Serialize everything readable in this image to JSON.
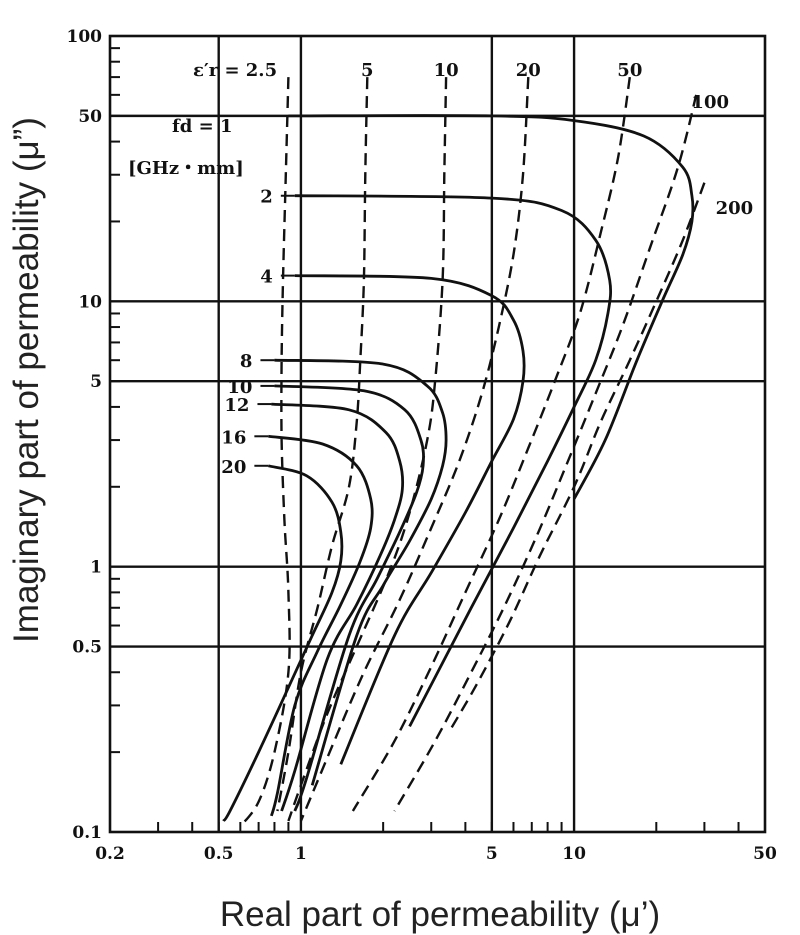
{
  "chart_data": {
    "type": "line",
    "title": "",
    "xlabel": "Real part of permeability (μ’)",
    "ylabel": "Imaginary part of permeability (μ”)",
    "xscale": "log",
    "yscale": "log",
    "xlim": [
      0.2,
      50
    ],
    "ylim": [
      0.1,
      100
    ],
    "grid": true,
    "xticks": [
      {
        "value": 0.2,
        "label": "0.2"
      },
      {
        "value": 0.5,
        "label": "0.5"
      },
      {
        "value": 1,
        "label": "1"
      },
      {
        "value": 5,
        "label": "5"
      },
      {
        "value": 10,
        "label": "10"
      },
      {
        "value": 50,
        "label": "50"
      }
    ],
    "yticks": [
      {
        "value": 0.1,
        "label": "0.1"
      },
      {
        "value": 0.5,
        "label": "0.5"
      },
      {
        "value": 1,
        "label": "1"
      },
      {
        "value": 5,
        "label": "5"
      },
      {
        "value": 10,
        "label": "10"
      },
      {
        "value": 50,
        "label": "50"
      },
      {
        "value": 100,
        "label": "100"
      }
    ],
    "fd_label": "fd = 1",
    "fd_unit": "[GHz・mm]",
    "eps_label": "ε′r = 2.5",
    "fd_series": [
      {
        "label": "1",
        "style": "solid",
        "points": [
          [
            0.9,
            50
          ],
          [
            5,
            50
          ],
          [
            10,
            48
          ],
          [
            18,
            42
          ],
          [
            25,
            32
          ],
          [
            27,
            25
          ],
          [
            27,
            20
          ],
          [
            25,
            15
          ],
          [
            21,
            10
          ],
          [
            17,
            6
          ],
          [
            13,
            3
          ],
          [
            10,
            1.8
          ]
        ]
      },
      {
        "label": "2",
        "style": "solid",
        "points": [
          [
            0.95,
            25
          ],
          [
            5,
            24.5
          ],
          [
            9,
            22
          ],
          [
            12,
            17
          ],
          [
            13.5,
            12
          ],
          [
            13.3,
            9
          ],
          [
            12,
            6
          ],
          [
            10,
            4
          ],
          [
            8,
            2.5
          ],
          [
            6,
            1.4
          ],
          [
            4.2,
            0.7
          ],
          [
            2.5,
            0.25
          ]
        ]
      },
      {
        "label": "4",
        "style": "solid",
        "points": [
          [
            0.95,
            12.5
          ],
          [
            3,
            12.2
          ],
          [
            5,
            10.5
          ],
          [
            6,
            8.5
          ],
          [
            6.5,
            6.5
          ],
          [
            6.5,
            5
          ],
          [
            6,
            3.6
          ],
          [
            5,
            2.5
          ],
          [
            4,
            1.6
          ],
          [
            3,
            0.95
          ],
          [
            2.2,
            0.55
          ],
          [
            1.4,
            0.18
          ]
        ]
      },
      {
        "label": "8",
        "style": "solid",
        "points": [
          [
            0.8,
            6
          ],
          [
            2,
            5.8
          ],
          [
            2.9,
            4.8
          ],
          [
            3.3,
            3.8
          ],
          [
            3.4,
            3
          ],
          [
            3.3,
            2.4
          ],
          [
            3,
            1.8
          ],
          [
            2.5,
            1.25
          ],
          [
            2,
            0.85
          ],
          [
            1.6,
            0.55
          ],
          [
            1.1,
            0.15
          ]
        ]
      },
      {
        "label": "10",
        "style": "solid",
        "points": [
          [
            0.8,
            4.8
          ],
          [
            1.7,
            4.6
          ],
          [
            2.4,
            3.9
          ],
          [
            2.75,
            3
          ],
          [
            2.8,
            2.4
          ],
          [
            2.65,
            1.9
          ],
          [
            2.3,
            1.35
          ],
          [
            1.9,
            0.9
          ],
          [
            1.5,
            0.55
          ],
          [
            1.05,
            0.16
          ],
          [
            0.95,
            0.12
          ]
        ]
      },
      {
        "label": "12",
        "style": "solid",
        "points": [
          [
            0.78,
            4.1
          ],
          [
            1.5,
            3.9
          ],
          [
            2.05,
            3.2
          ],
          [
            2.3,
            2.5
          ],
          [
            2.35,
            1.95
          ],
          [
            2.2,
            1.5
          ],
          [
            1.95,
            1.1
          ],
          [
            1.6,
            0.72
          ],
          [
            1.25,
            0.45
          ],
          [
            0.95,
            0.17
          ],
          [
            0.85,
            0.12
          ]
        ]
      },
      {
        "label": "16",
        "style": "solid",
        "points": [
          [
            0.76,
            3.1
          ],
          [
            1.2,
            2.9
          ],
          [
            1.6,
            2.4
          ],
          [
            1.8,
            1.8
          ],
          [
            1.8,
            1.4
          ],
          [
            1.65,
            1.05
          ],
          [
            1.4,
            0.72
          ],
          [
            1.15,
            0.48
          ],
          [
            0.95,
            0.3
          ],
          [
            0.82,
            0.14
          ],
          [
            0.78,
            0.115
          ]
        ]
      },
      {
        "label": "20",
        "style": "solid",
        "points": [
          [
            0.76,
            2.4
          ],
          [
            1.05,
            2.2
          ],
          [
            1.3,
            1.75
          ],
          [
            1.4,
            1.35
          ],
          [
            1.4,
            1.05
          ],
          [
            1.3,
            0.8
          ],
          [
            1.1,
            0.55
          ],
          [
            0.9,
            0.35
          ],
          [
            0.7,
            0.2
          ],
          [
            0.55,
            0.12
          ],
          [
            0.52,
            0.11
          ]
        ]
      }
    ],
    "eps_series": [
      {
        "label": "2.5",
        "style": "dashed",
        "points": [
          [
            0.9,
            70
          ],
          [
            0.88,
            30
          ],
          [
            0.86,
            12
          ],
          [
            0.85,
            6
          ],
          [
            0.85,
            3
          ],
          [
            0.87,
            1.5
          ],
          [
            0.9,
            0.8
          ],
          [
            0.9,
            0.4
          ],
          [
            0.8,
            0.2
          ],
          [
            0.7,
            0.13
          ],
          [
            0.6,
            0.105
          ]
        ]
      },
      {
        "label": "5",
        "style": "dashed",
        "points": [
          [
            1.75,
            70
          ],
          [
            1.72,
            30
          ],
          [
            1.7,
            12
          ],
          [
            1.65,
            6
          ],
          [
            1.6,
            3.5
          ],
          [
            1.5,
            2
          ],
          [
            1.3,
            1.2
          ],
          [
            1.15,
            0.7
          ],
          [
            1,
            0.4
          ],
          [
            0.9,
            0.2
          ],
          [
            0.82,
            0.12
          ]
        ]
      },
      {
        "label": "10",
        "style": "dashed",
        "points": [
          [
            3.4,
            70
          ],
          [
            3.35,
            30
          ],
          [
            3.3,
            12
          ],
          [
            3.1,
            5
          ],
          [
            2.9,
            3
          ],
          [
            2.5,
            1.6
          ],
          [
            2.1,
            0.95
          ],
          [
            1.6,
            0.5
          ],
          [
            1.25,
            0.28
          ],
          [
            1,
            0.15
          ],
          [
            0.9,
            0.11
          ]
        ]
      },
      {
        "label": "20",
        "style": "dashed",
        "points": [
          [
            6.8,
            70
          ],
          [
            6.5,
            30
          ],
          [
            6,
            15
          ],
          [
            5.3,
            8
          ],
          [
            4.6,
            4.5
          ],
          [
            3.8,
            2.5
          ],
          [
            3,
            1.4
          ],
          [
            2.3,
            0.75
          ],
          [
            1.7,
            0.4
          ],
          [
            1.3,
            0.21
          ],
          [
            1,
            0.11
          ]
        ]
      },
      {
        "label": "50",
        "style": "dashed",
        "points": [
          [
            16,
            70
          ],
          [
            14.5,
            35
          ],
          [
            12.5,
            18
          ],
          [
            10.5,
            9
          ],
          [
            8.5,
            5
          ],
          [
            6.8,
            2.8
          ],
          [
            5.3,
            1.5
          ],
          [
            4,
            0.8
          ],
          [
            3,
            0.42
          ],
          [
            2.2,
            0.22
          ],
          [
            1.55,
            0.12
          ]
        ]
      },
      {
        "label": "100",
        "style": "dashed",
        "points": [
          [
            28,
            60
          ],
          [
            24,
            32
          ],
          [
            19,
            16
          ],
          [
            15,
            8
          ],
          [
            12,
            4.5
          ],
          [
            9.5,
            2.5
          ],
          [
            7.4,
            1.35
          ],
          [
            5.6,
            0.72
          ],
          [
            4.2,
            0.4
          ],
          [
            3.1,
            0.22
          ],
          [
            2.2,
            0.12
          ]
        ]
      },
      {
        "label": "200",
        "style": "dashed",
        "points": [
          [
            30,
            28
          ],
          [
            25,
            17
          ],
          [
            20,
            10
          ],
          [
            16,
            6
          ],
          [
            12.5,
            3.5
          ],
          [
            10,
            2
          ],
          [
            7.5,
            1.1
          ],
          [
            5.8,
            0.62
          ],
          [
            4.4,
            0.36
          ],
          [
            3.5,
            0.24
          ]
        ]
      }
    ]
  }
}
